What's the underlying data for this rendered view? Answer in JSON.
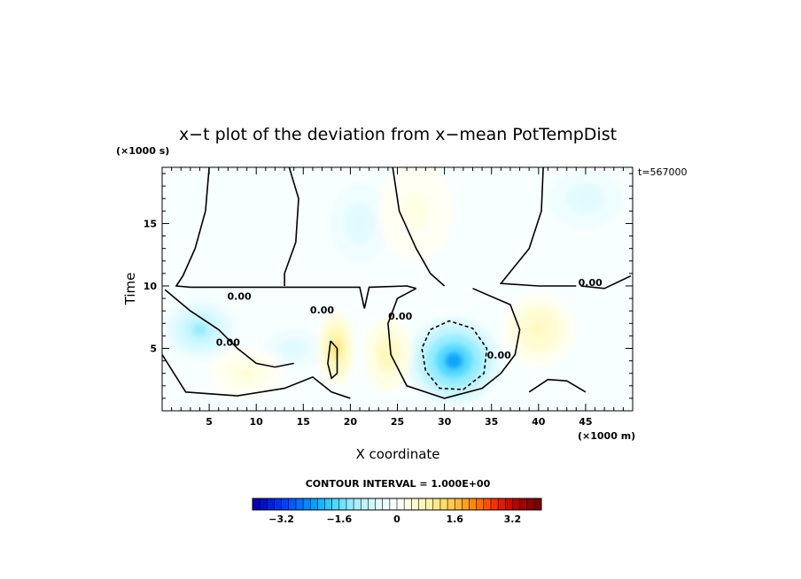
{
  "chart_data": {
    "type": "heatmap",
    "title": "x−t plot of the deviation from x−mean PotTempDist",
    "xlabel": "X coordinate",
    "ylabel": "Time",
    "x_units": "(×1000 m)",
    "y_units": "(×1000 s)",
    "time_stamp": "t=567000",
    "xlim": [
      0,
      50
    ],
    "ylim": [
      0,
      19.5
    ],
    "x_ticks": [
      5,
      10,
      15,
      20,
      25,
      30,
      35,
      40,
      45
    ],
    "y_ticks": [
      5,
      10,
      15
    ],
    "contour_interval_text": "CONTOUR INTERVAL = 1.000E+00",
    "contour_labels": [
      {
        "text": "0.00",
        "x": 8.2,
        "y": 8.9
      },
      {
        "text": "0.00",
        "x": 7.0,
        "y": 5.2
      },
      {
        "text": "0.00",
        "x": 17.0,
        "y": 7.8
      },
      {
        "text": "0.00",
        "x": 25.3,
        "y": 7.3
      },
      {
        "text": "0.00",
        "x": 35.8,
        "y": 4.2
      },
      {
        "text": "0.00",
        "x": 45.5,
        "y": 10.0
      }
    ],
    "features": [
      {
        "kind": "negative-anomaly",
        "center": [
          31,
          4
        ],
        "peak": -2.2,
        "rx": 5,
        "ry": 3.5
      },
      {
        "kind": "negative-anomaly",
        "center": [
          4,
          6.5
        ],
        "peak": -1.2,
        "rx": 4,
        "ry": 2.5
      },
      {
        "kind": "negative-anomaly",
        "center": [
          14,
          5
        ],
        "peak": -0.6,
        "rx": 4,
        "ry": 2
      },
      {
        "kind": "negative-anomaly",
        "center": [
          21,
          15
        ],
        "peak": -0.5,
        "rx": 4,
        "ry": 4
      },
      {
        "kind": "negative-anomaly",
        "center": [
          45,
          17
        ],
        "peak": -0.5,
        "rx": 5,
        "ry": 3
      },
      {
        "kind": "positive-anomaly",
        "center": [
          18.5,
          5
        ],
        "peak": 1.2,
        "rx": 2,
        "ry": 3
      },
      {
        "kind": "positive-anomaly",
        "center": [
          24,
          4.5
        ],
        "peak": 0.8,
        "rx": 2.5,
        "ry": 3
      },
      {
        "kind": "positive-anomaly",
        "center": [
          40,
          6.5
        ],
        "peak": 0.7,
        "rx": 4,
        "ry": 3
      },
      {
        "kind": "positive-anomaly",
        "center": [
          27,
          16
        ],
        "peak": 0.3,
        "rx": 4,
        "ry": 4
      },
      {
        "kind": "positive-anomaly",
        "center": [
          9,
          3
        ],
        "peak": 0.4,
        "rx": 4,
        "ry": 2
      }
    ],
    "colorbar": {
      "labels": [
        "−3.2",
        "−1.6",
        "0",
        "1.6",
        "3.2"
      ],
      "label_values": [
        -3.2,
        -1.6,
        0,
        1.6,
        3.2
      ],
      "min": -4.0,
      "max": 4.0,
      "step": 0.2,
      "colors_low_to_high": [
        "#0000b4",
        "#0010c8",
        "#0020dc",
        "#0030f0",
        "#0040ff",
        "#0058ff",
        "#0070ff",
        "#0088ff",
        "#00a0ff",
        "#18b4ff",
        "#30c8ff",
        "#50d8ff",
        "#70e4ff",
        "#90ecff",
        "#a8f0ff",
        "#bff4ff",
        "#d0f8ff",
        "#e0fbff",
        "#eefdff",
        "#f8ffff",
        "#fffff4",
        "#ffffe6",
        "#fffcd2",
        "#fff8bd",
        "#fff2a4",
        "#ffe98a",
        "#ffdc6c",
        "#ffcc50",
        "#ffb834",
        "#ffa11c",
        "#ff8806",
        "#ff6c00",
        "#ff5000",
        "#f43400",
        "#e01c00",
        "#cc0c00",
        "#b80000",
        "#a40000",
        "#900000",
        "#7c0000"
      ]
    }
  }
}
